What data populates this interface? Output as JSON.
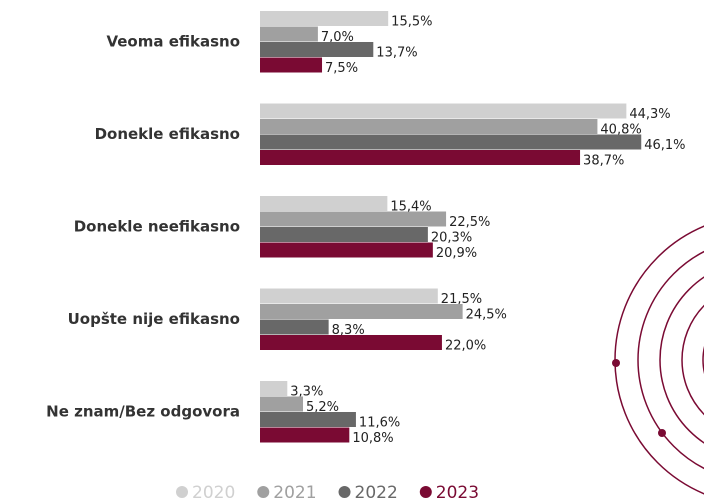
{
  "chart_data": {
    "type": "hbar",
    "categories": [
      "Veoma efikasno",
      "Donekle efikasno",
      "Donekle neefikasno",
      "Uopšte nije efikasno",
      "Ne znam/Bez odgovora"
    ],
    "series": [
      {
        "name": "2020",
        "color": "#d0d0d0",
        "values": [
          15.5,
          44.3,
          15.4,
          21.5,
          3.3
        ],
        "value_labels": [
          "15,5%",
          "44,3%",
          "15,4%",
          "21,5%",
          "3,3%"
        ]
      },
      {
        "name": "2021",
        "color": "#a0a0a0",
        "values": [
          7.0,
          40.8,
          22.5,
          24.5,
          5.2
        ],
        "value_labels": [
          "7,0%",
          "40,8%",
          "22,5%",
          "24,5%",
          "5,2%"
        ]
      },
      {
        "name": "2022",
        "color": "#686868",
        "values": [
          13.7,
          46.1,
          20.3,
          8.3,
          11.6
        ],
        "value_labels": [
          "13,7%",
          "46,1%",
          "20,3%",
          "8,3%",
          "11,6%"
        ]
      },
      {
        "name": "2023",
        "color": "#7a0a33",
        "values": [
          7.5,
          38.7,
          20.9,
          22.0,
          10.8
        ],
        "value_labels": [
          "7,5%",
          "38,7%",
          "20,9%",
          "22,0%",
          "10,8%"
        ]
      }
    ]
  }
}
